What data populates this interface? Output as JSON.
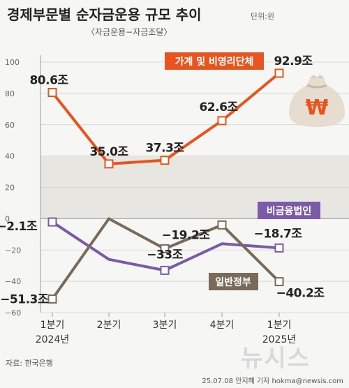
{
  "title": "경제부문별 순자금운용 규모 추이",
  "unit": "단위:원",
  "subtitle": "〈자금운용−자금조달〉",
  "source": "자료: 한국은행",
  "footer": "25.07.08 안지혜 기자  hokma@newsis.com",
  "watermark": "뉴시스",
  "colors": {
    "household": "#e8541e",
    "corporate_nonfin": "#7b5ba8",
    "government": "#7a6a5a",
    "shade": "#e8e6e1",
    "background": "#f6f6f4"
  },
  "chart_data": {
    "type": "line",
    "categories": [
      "1분기\n2024년",
      "2분기",
      "3분기",
      "4분기",
      "1분기\n2025년"
    ],
    "x_labels_line1": [
      "1분기",
      "2분기",
      "3분기",
      "4분기",
      "1분기"
    ],
    "x_labels_line2": [
      "2024년",
      "",
      "",
      "",
      "2025년"
    ],
    "ylim": [
      -60,
      100
    ],
    "yticks": [
      -60,
      -40,
      -20,
      0,
      20,
      40,
      60,
      80,
      100
    ],
    "series": [
      {
        "name": "가계 및 비영리단체",
        "color": "#e8541e",
        "values": [
          80.6,
          35.0,
          37.3,
          62.6,
          92.9
        ],
        "labels": [
          "80.6조",
          "35.0조",
          "37.3조",
          "62.6조",
          "92.9조"
        ],
        "markers": [
          true,
          true,
          true,
          true,
          true
        ]
      },
      {
        "name": "비금융법인",
        "color": "#7b5ba8",
        "values": [
          -2.1,
          -26,
          -33,
          -16,
          -18.7
        ],
        "labels": [
          "−2.1조",
          "",
          "−33조",
          "",
          "−18.7조"
        ],
        "markers": [
          true,
          false,
          true,
          false,
          true
        ]
      },
      {
        "name": "일반정부",
        "color": "#7a6a5a",
        "values": [
          -51.3,
          0,
          -19.2,
          -4,
          -40.2
        ],
        "labels": [
          "−51.3조",
          "",
          "−19.2조",
          "",
          "−40.2조"
        ],
        "markers": [
          true,
          false,
          true,
          true,
          true
        ]
      }
    ]
  }
}
